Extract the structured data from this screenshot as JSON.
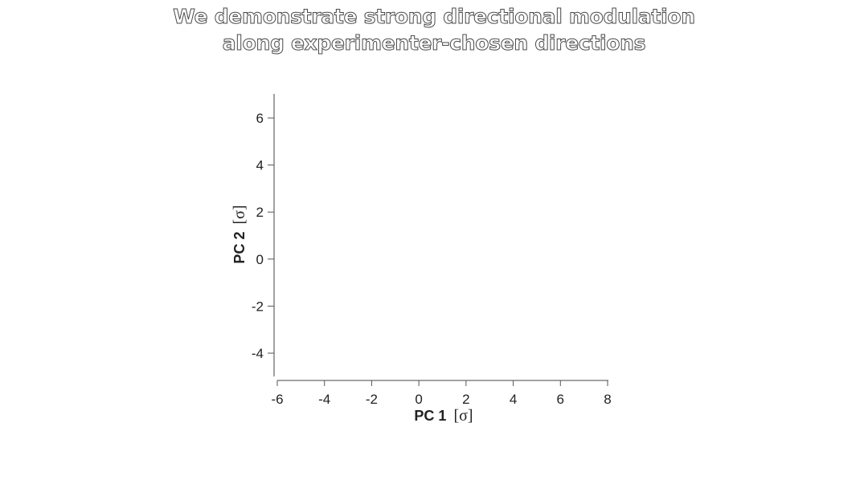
{
  "slide": {
    "title_line_1": "We demonstrate strong directional modulation",
    "title_line_2": "along experimenter-chosen directions"
  },
  "chart_data": {
    "type": "scatter",
    "title": "",
    "xlabel": "PC 1 [σ]",
    "ylabel": "PC 2 [σ]",
    "xlabel_main": "PC 1",
    "xlabel_unit": "[σ]",
    "ylabel_main": "PC 2",
    "ylabel_unit": "[σ]",
    "xlim": [
      -6,
      8
    ],
    "ylim": [
      -5,
      7
    ],
    "xticks": [
      -6,
      -4,
      -2,
      0,
      2,
      4,
      6,
      8
    ],
    "yticks": [
      -4,
      -2,
      0,
      2,
      4,
      6
    ],
    "grid": false,
    "series": []
  }
}
